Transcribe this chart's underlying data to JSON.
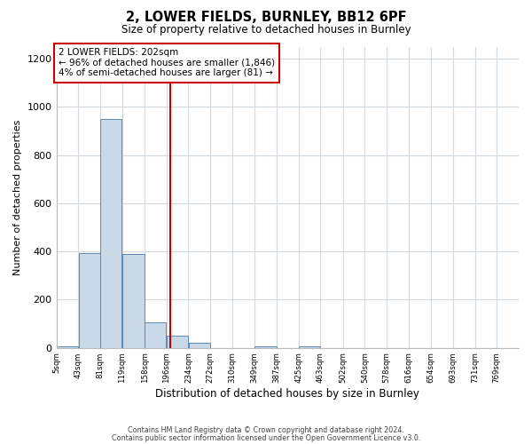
{
  "title": "2, LOWER FIELDS, BURNLEY, BB12 6PF",
  "subtitle": "Size of property relative to detached houses in Burnley",
  "xlabel": "Distribution of detached houses by size in Burnley",
  "ylabel": "Number of detached properties",
  "bar_left_edges": [
    5,
    43,
    81,
    119,
    158,
    196,
    234,
    272,
    310,
    349,
    387,
    425,
    463,
    502,
    540,
    578,
    616,
    654,
    693,
    731
  ],
  "bar_widths": [
    38,
    38,
    38,
    39,
    38,
    38,
    38,
    38,
    39,
    38,
    38,
    38,
    39,
    38,
    38,
    38,
    38,
    39,
    38,
    38
  ],
  "bar_heights": [
    5,
    395,
    950,
    390,
    105,
    50,
    20,
    0,
    0,
    5,
    0,
    5,
    0,
    0,
    0,
    0,
    0,
    0,
    0,
    0
  ],
  "bar_color": "#c9d9e8",
  "bar_edgecolor": "#5b8ab5",
  "x_tick_labels": [
    "5sqm",
    "43sqm",
    "81sqm",
    "119sqm",
    "158sqm",
    "196sqm",
    "234sqm",
    "272sqm",
    "310sqm",
    "349sqm",
    "387sqm",
    "425sqm",
    "463sqm",
    "502sqm",
    "540sqm",
    "578sqm",
    "616sqm",
    "654sqm",
    "693sqm",
    "731sqm",
    "769sqm"
  ],
  "x_tick_positions": [
    5,
    43,
    81,
    119,
    158,
    196,
    234,
    272,
    310,
    349,
    387,
    425,
    463,
    502,
    540,
    578,
    616,
    654,
    693,
    731,
    769
  ],
  "ylim": [
    0,
    1250
  ],
  "yticks": [
    0,
    200,
    400,
    600,
    800,
    1000,
    1200
  ],
  "xlim_min": 5,
  "xlim_max": 807,
  "vline_x": 202,
  "vline_color": "#cc0000",
  "annotation_title": "2 LOWER FIELDS: 202sqm",
  "annotation_line1": "← 96% of detached houses are smaller (1,846)",
  "annotation_line2": "4% of semi-detached houses are larger (81) →",
  "annotation_box_edgecolor": "#cc0000",
  "footer_line1": "Contains HM Land Registry data © Crown copyright and database right 2024.",
  "footer_line2": "Contains public sector information licensed under the Open Government Licence v3.0.",
  "background_color": "#ffffff",
  "grid_color": "#d0d8e0"
}
